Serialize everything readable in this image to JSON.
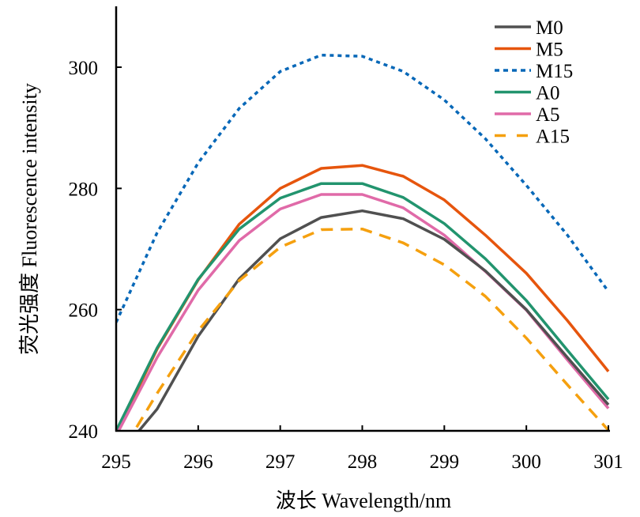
{
  "chart_data": {
    "type": "line",
    "title": "",
    "xlabel": "波长 Wavelength/nm",
    "ylabel": "荧光强度 Fluorescence intensity",
    "xlim": [
      295,
      301
    ],
    "ylim": [
      240,
      310
    ],
    "x_ticks": [
      295,
      296,
      297,
      298,
      299,
      300,
      301
    ],
    "y_ticks": [
      240,
      260,
      280,
      300
    ],
    "grid": false,
    "legend_position": "top-right",
    "x": [
      295,
      295.5,
      296,
      296.5,
      297,
      297.5,
      298,
      298.5,
      299,
      299.5,
      300,
      300.5,
      301
    ],
    "series": [
      {
        "name": "M0",
        "color": "#505050",
        "style": "solid",
        "values": [
          235.5,
          243.6,
          255.6,
          265.1,
          271.7,
          275.2,
          276.3,
          275.0,
          271.6,
          266.4,
          260.0,
          252.1,
          244.3
        ]
      },
      {
        "name": "M5",
        "color": "#e6550d",
        "style": "solid",
        "values": [
          239.5,
          253.5,
          264.9,
          274.1,
          280.0,
          283.3,
          283.8,
          282.0,
          278.1,
          272.3,
          266.0,
          258.2,
          249.8
        ]
      },
      {
        "name": "M15",
        "color": "#0868b8",
        "style": "dotted",
        "values": [
          257.9,
          272.7,
          284.2,
          293.2,
          299.3,
          302.0,
          301.8,
          299.3,
          294.6,
          288.2,
          280.5,
          272.3,
          263.0
        ]
      },
      {
        "name": "A0",
        "color": "#22946e",
        "style": "solid",
        "values": [
          240.0,
          253.7,
          265.0,
          273.3,
          278.4,
          280.8,
          280.8,
          278.5,
          274.2,
          268.4,
          261.5,
          253.3,
          245.2
        ]
      },
      {
        "name": "A5",
        "color": "#e06aa8",
        "style": "solid",
        "values": [
          239.2,
          252.1,
          263.2,
          271.4,
          276.6,
          279.0,
          279.0,
          276.8,
          272.3,
          266.3,
          259.9,
          251.7,
          243.7
        ]
      },
      {
        "name": "A15",
        "color": "#f5a00f",
        "style": "dashed",
        "values": [
          235.0,
          246.2,
          256.5,
          264.8,
          270.3,
          273.2,
          273.3,
          271.0,
          267.4,
          262.2,
          255.3,
          247.6,
          240.1
        ]
      }
    ]
  }
}
